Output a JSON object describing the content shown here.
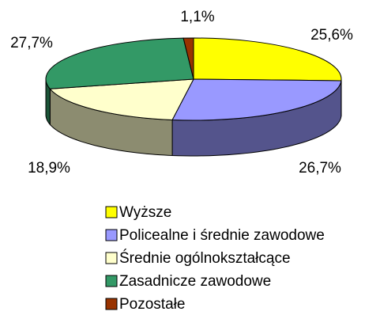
{
  "chart_data": {
    "type": "pie",
    "categories": [
      "Wyższe",
      "Policealne i średnie zawodowe",
      "Średnie ogólnokształcące",
      "Zasadnicze zawodowe",
      "Pozostałe"
    ],
    "values": [
      25.6,
      26.7,
      18.9,
      27.7,
      1.1
    ],
    "value_labels": [
      "25,6%",
      "26,7%",
      "18,9%",
      "27,7%",
      "1,1%"
    ],
    "colors": [
      "#ffff00",
      "#9999ff",
      "#ffffcc",
      "#339966",
      "#993300"
    ],
    "legend": "bottom"
  }
}
